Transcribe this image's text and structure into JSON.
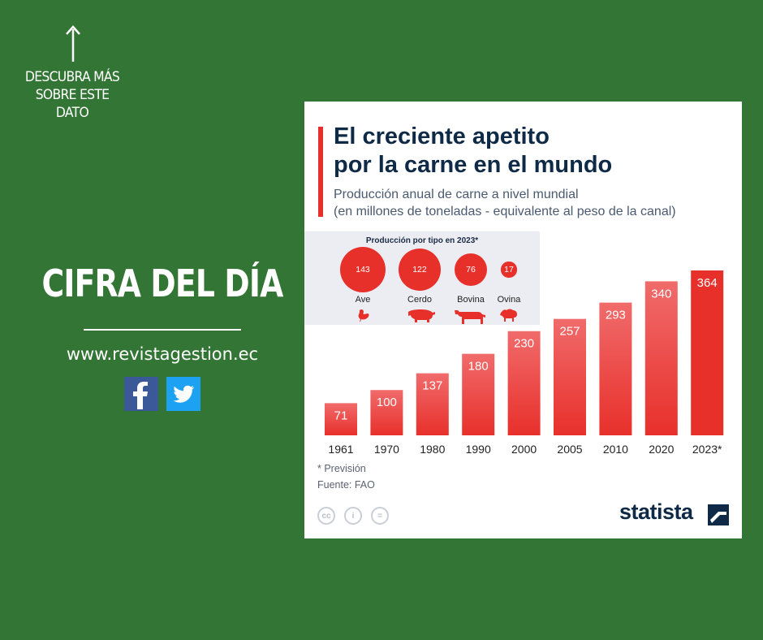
{
  "promo": {
    "line1": "DESCUBRA MÁS",
    "line2": "SOBRE ESTE",
    "line3": "DATO",
    "headline": "CIFRA DEL DÍA",
    "website": "www.revistagestion.ec",
    "social": [
      "facebook-icon",
      "twitter-icon"
    ]
  },
  "chart_data": {
    "type": "bar",
    "title": "El creciente apetito por la carne en el mundo",
    "title_line1": "El creciente apetito",
    "title_line2": "por la carne en el mundo",
    "subtitle_line1": "Producción anual de carne a nivel mundial",
    "subtitle_line2": "(en millones de toneladas - equivalente al peso de la canal)",
    "categories": [
      "1961",
      "1970",
      "1980",
      "1990",
      "2000",
      "2005",
      "2010",
      "2020",
      "2023*"
    ],
    "values": [
      71,
      100,
      137,
      180,
      230,
      257,
      293,
      340,
      364
    ],
    "ylim": [
      0,
      364
    ],
    "grid": false,
    "highlight_last": true,
    "colors": {
      "bar": "#f06b6b",
      "bar_dark": "#e8302b",
      "highlight": "#e8302b"
    },
    "inset": {
      "type": "bubble",
      "title": "Producción por tipo en 2023*",
      "items": [
        {
          "label": "Ave",
          "value": 143,
          "icon": "chicken-icon"
        },
        {
          "label": "Cerdo",
          "value": 122,
          "icon": "pig-icon"
        },
        {
          "label": "Bovina",
          "value": 76,
          "icon": "cow-icon"
        },
        {
          "label": "Ovina",
          "value": 17,
          "icon": "sheep-icon"
        }
      ]
    },
    "footnote": "* Previsión",
    "source": "Fuente: FAO",
    "brand": "statista"
  }
}
